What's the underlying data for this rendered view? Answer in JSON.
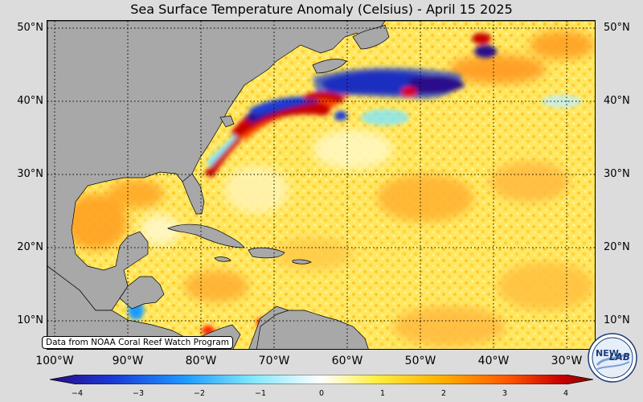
{
  "title": "Sea Surface Temperature Anomaly (Celsius) - April 15 2025",
  "credit": "Data from NOAA Coral Reef Watch Program",
  "lat_labels": [
    "50°N",
    "40°N",
    "30°N",
    "20°N",
    "10°N"
  ],
  "lon_labels": [
    "100°W",
    "90°W",
    "80°W",
    "70°W",
    "60°W",
    "50°W",
    "40°W",
    "30°W"
  ],
  "colorbar": {
    "ticks": [
      "−4",
      "−3",
      "−2",
      "−1",
      "0",
      "1",
      "2",
      "3",
      "4"
    ],
    "colors": [
      "#2a0a8a",
      "#1a3cd6",
      "#1e9bff",
      "#7fe6ff",
      "#ffffff",
      "#ffee44",
      "#ffb000",
      "#ff5a00",
      "#c80000",
      "#8a0000"
    ]
  },
  "logo": {
    "line1": "NEW",
    "line2": "LAB"
  },
  "colors": {
    "land": "#a8a8a8",
    "ocean_base": "#fff08a"
  }
}
